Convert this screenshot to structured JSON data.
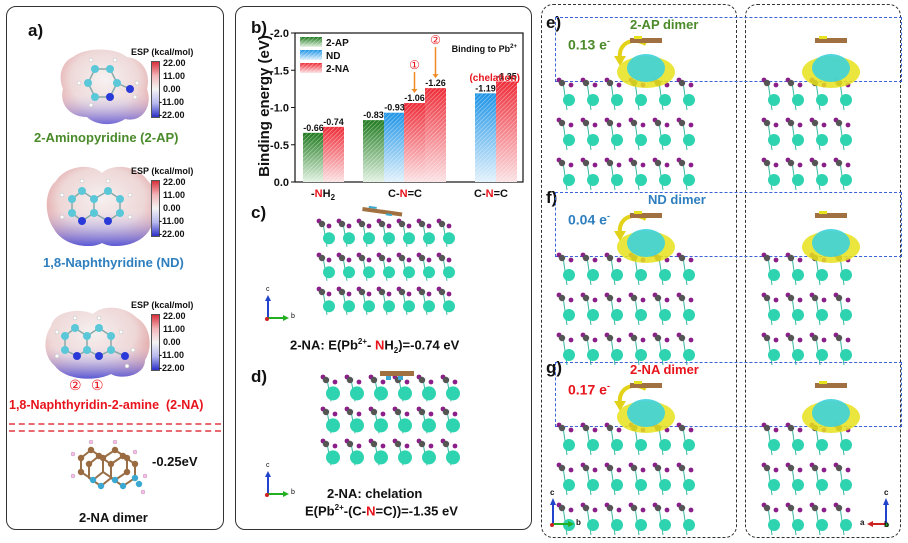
{
  "panel_a": {
    "label": "a)",
    "esp_title": "ESP (kcal/mol)",
    "esp_ticks": [
      "22.00",
      "11.00",
      "0.00",
      "-11.00",
      "-22.00"
    ],
    "molecules": [
      {
        "name": "2-Aminopyridine (2-AP)",
        "color": "#4a8a2a"
      },
      {
        "name": "1,8-Naphthyridine (ND)",
        "color": "#2e7fbf"
      },
      {
        "name": "1,8-Naphthyridin-2-amine  (2-NA)",
        "color": "#e8141c"
      }
    ],
    "site_markers": [
      "②",
      "①"
    ],
    "dimer_energy": "-0.25eV",
    "dimer_label": "2-NA dimer"
  },
  "panel_b": {
    "label": "b)"
  },
  "panel_c": {
    "label": "c)",
    "caption_pre": "2-NA: E(Pb",
    "caption_sup": "2+",
    "caption_mid": "- ",
    "caption_red": "N",
    "caption_post": "H",
    "caption_sub": "2",
    "caption_end": ")=-0.74 eV",
    "axes": {
      "c": "c",
      "b": "b"
    }
  },
  "panel_d": {
    "label": "d)",
    "caption_line1": "2-NA: chelation",
    "caption_pre": "E(Pb",
    "caption_sup": "2+",
    "caption_mid": "-(C-",
    "caption_red": "N",
    "caption_end": "=C))=-1.35 eV",
    "axes": {
      "c": "c",
      "b": "b"
    }
  },
  "panel_efg": {
    "rows": [
      {
        "label": "e)",
        "charge": "0.13 e",
        "charge_sup": "-",
        "dimer": "2-AP dimer",
        "color": "#4a8a2a"
      },
      {
        "label": "f)",
        "charge": "0.04 e",
        "charge_sup": "-",
        "dimer": "ND dimer",
        "color": "#2e7fbf"
      },
      {
        "label": "g)",
        "charge": "0.17 e",
        "charge_sup": "-",
        "dimer": "2-NA dimer",
        "color": "#e8141c"
      }
    ],
    "axes_left": {
      "c": "c",
      "b": "b"
    },
    "axes_right": {
      "c": "c",
      "a": "a",
      "b": "b"
    }
  },
  "colors": {
    "ap": "#2f8a2f",
    "nd": "#2a9be0",
    "na": "#ee3a44",
    "accent_red": "#e8141c",
    "arrow_orange": "#f08a24",
    "dash_blue": "#3b63d6"
  },
  "chart_data": {
    "type": "bar",
    "title": "Binding to Pb2+",
    "xlabel": "",
    "ylabel": "Binding energy (eV)",
    "ylim": [
      0.0,
      -2.0
    ],
    "yticks": [
      "0.0",
      "-0.5",
      "-1.0",
      "-1.5",
      "-2.0"
    ],
    "categories": [
      {
        "pre": "-",
        "red": "N",
        "post": "H",
        "sub": "2"
      },
      {
        "pre": "C-",
        "red": "N",
        "post": "=C",
        "sub": ""
      },
      {
        "pre": "C-",
        "red": "N",
        "post": "=C",
        "sub": ""
      }
    ],
    "legend": {
      "position": "top-left",
      "entries": [
        "2-AP",
        "ND",
        "2-NA"
      ]
    },
    "bars": [
      {
        "category": 0,
        "series": "2-AP",
        "value": -0.66,
        "label": "-0.66"
      },
      {
        "category": 0,
        "series": "2-NA",
        "value": -0.74,
        "label": "-0.74"
      },
      {
        "category": 1,
        "series": "2-AP",
        "value": -0.83,
        "label": "-0.83"
      },
      {
        "category": 1,
        "series": "ND",
        "value": -0.93,
        "label": "-0.93"
      },
      {
        "category": 1,
        "series": "2-NA",
        "value": -1.06,
        "label": "-1.06",
        "marker": "①"
      },
      {
        "category": 1,
        "series": "2-NA",
        "value": -1.26,
        "label": "-1.26",
        "marker": "②"
      },
      {
        "category": 2,
        "series": "ND",
        "value": -1.19,
        "label": "-1.19"
      },
      {
        "category": 2,
        "series": "2-NA",
        "value": -1.35,
        "label": "-1.35"
      }
    ],
    "annotations": [
      "(chelation)"
    ],
    "grid": false
  }
}
